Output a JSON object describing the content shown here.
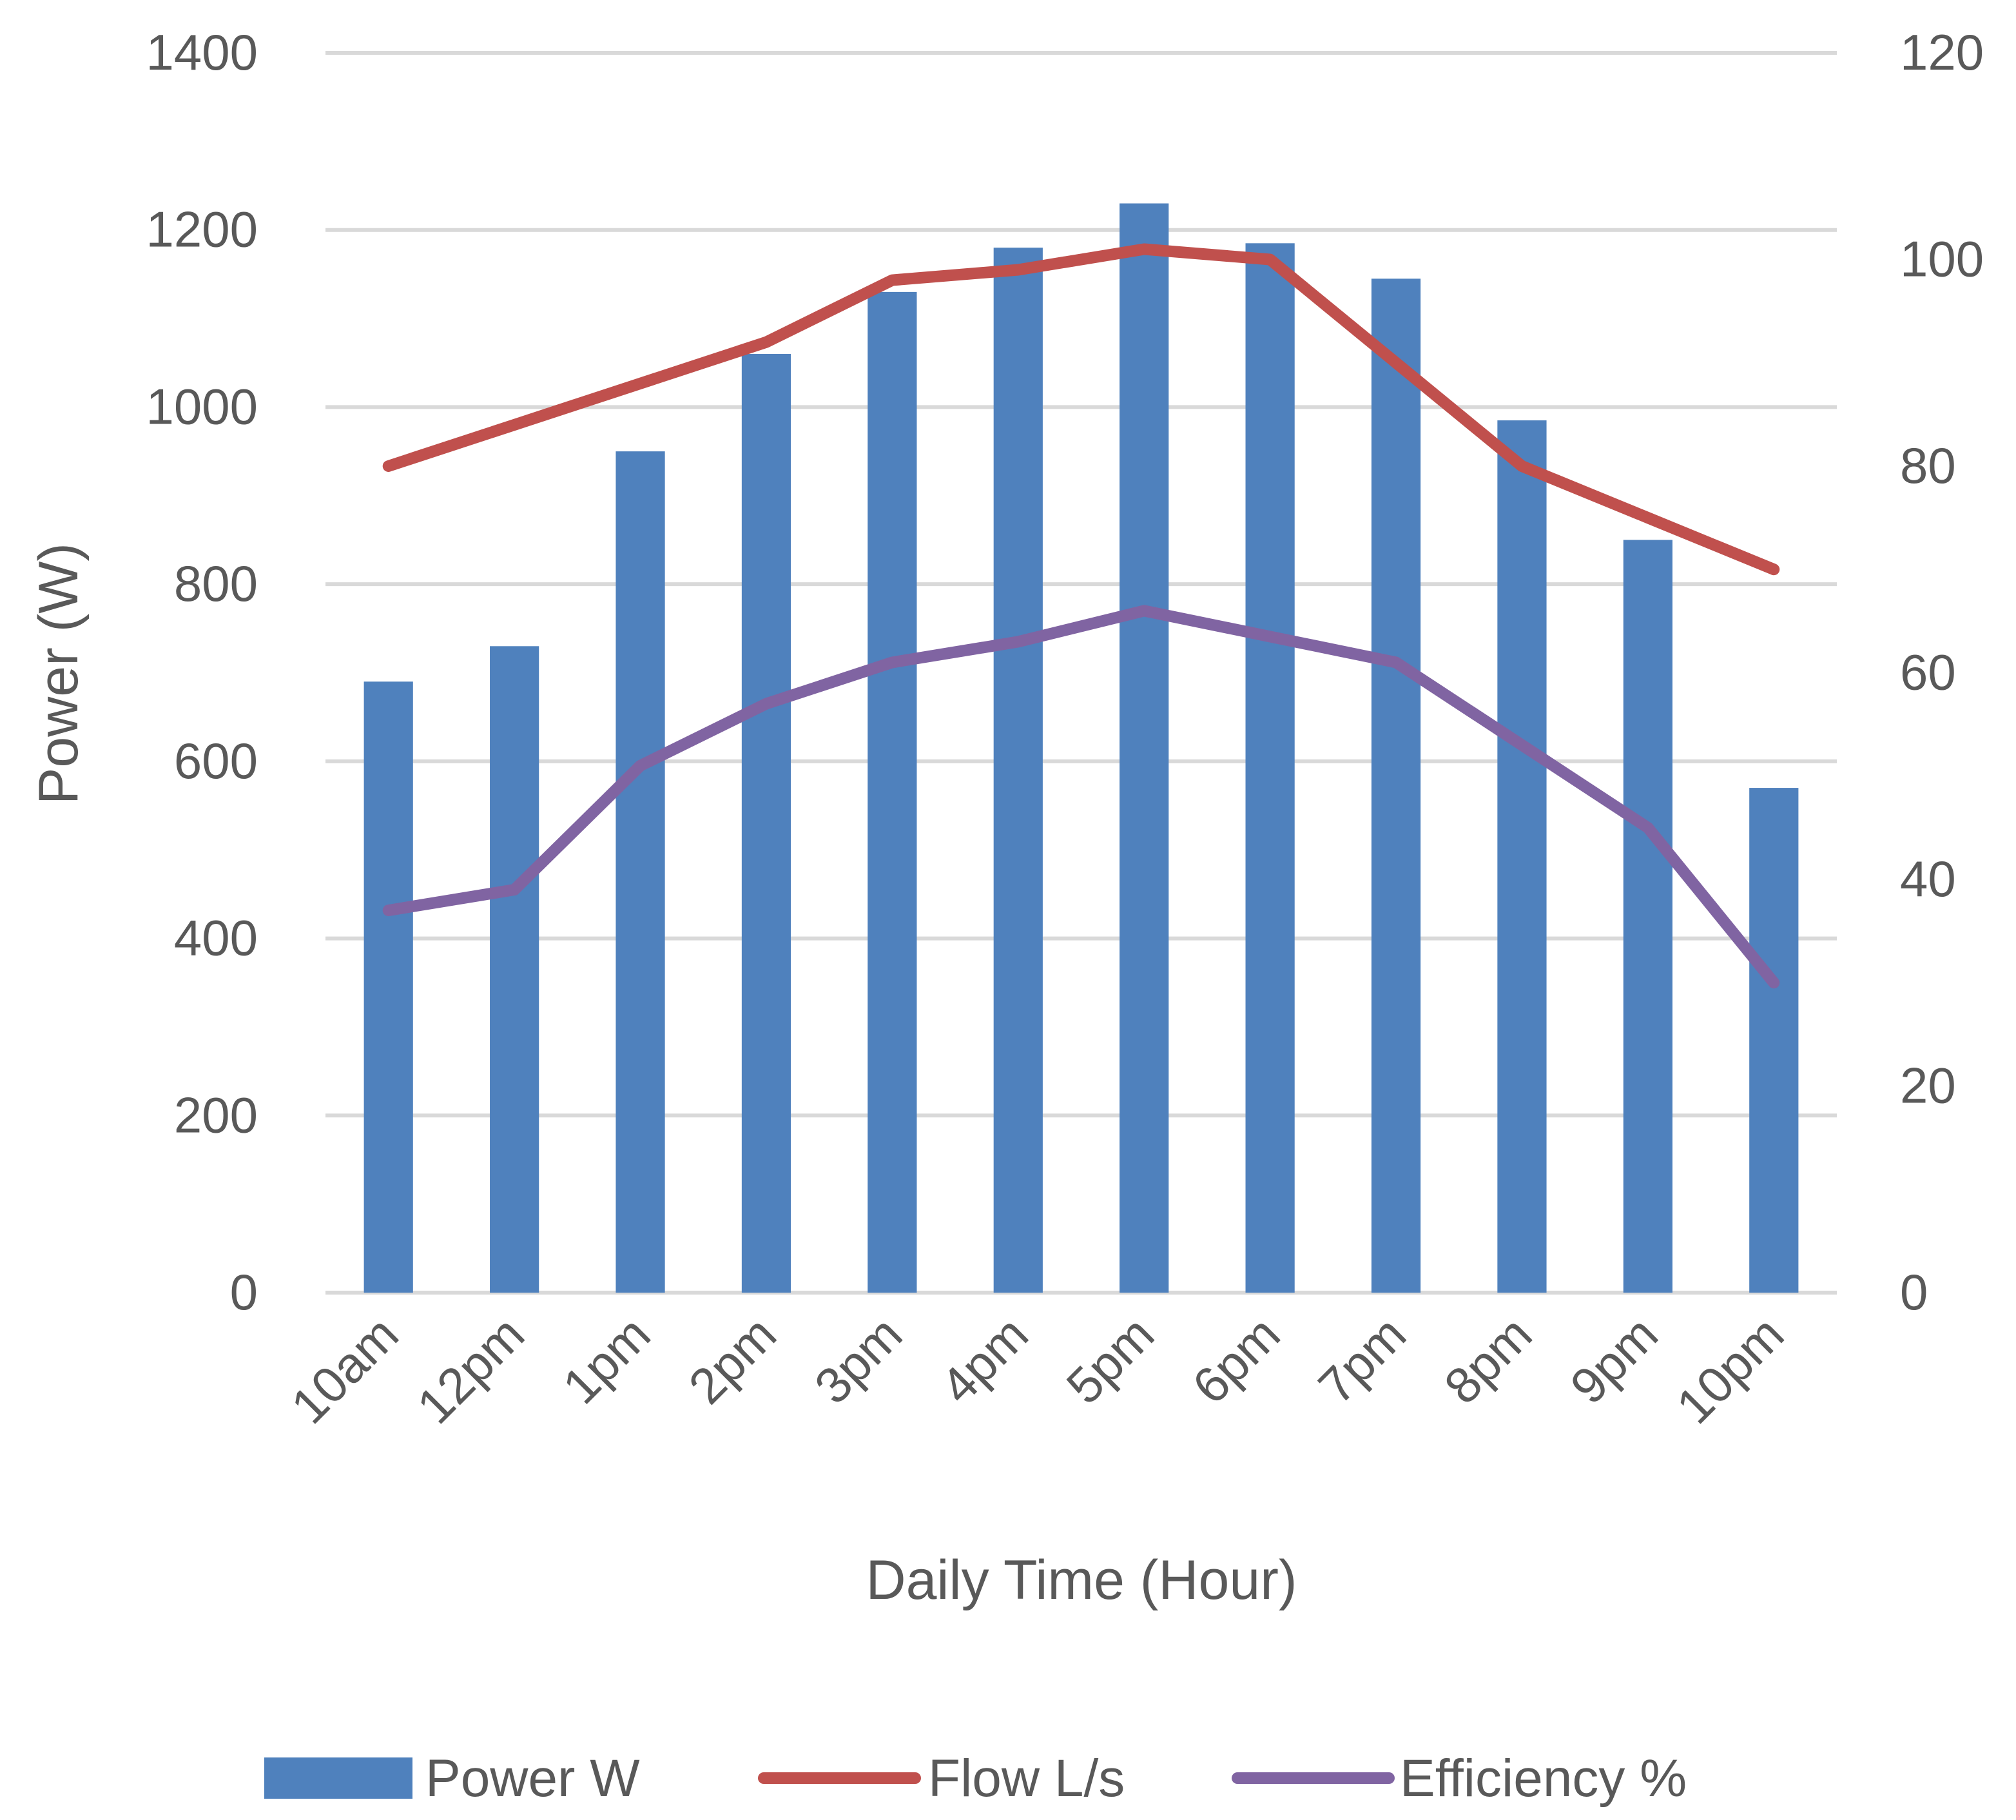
{
  "chart_data": {
    "type": "bar",
    "title": "",
    "xlabel": "Daily Time (Hour)",
    "ylabel": "Power (W)",
    "y2label": "",
    "ylim": [
      0,
      1400
    ],
    "y2lim": [
      0,
      120
    ],
    "yticks": [
      0,
      200,
      400,
      600,
      800,
      1000,
      1200,
      1400
    ],
    "y2ticks": [
      0,
      20,
      40,
      60,
      80,
      100,
      120
    ],
    "grid": true,
    "legend_position": "bottom",
    "categories": [
      "10am",
      "12pm",
      "1pm",
      "2pm",
      "3pm",
      "4pm",
      "5pm",
      "6pm",
      "7pm",
      "8pm",
      "9pm",
      "10pm"
    ],
    "series": [
      {
        "name": "Power W",
        "type": "bar",
        "axis": "left",
        "color": "#4f81bd",
        "values": [
          690,
          730,
          950,
          1060,
          1130,
          1180,
          1230,
          1185,
          1145,
          985,
          850,
          570
        ]
      },
      {
        "name": "Flow L/s",
        "type": "line",
        "axis": "right",
        "color": "#c0504d",
        "values": [
          80,
          84,
          88,
          92,
          98,
          99,
          101,
          100,
          90,
          80,
          75,
          70
        ]
      },
      {
        "name": "Efficiency %",
        "type": "line",
        "axis": "right",
        "color": "#8064a2",
        "values": [
          37,
          39,
          51,
          57,
          61,
          63,
          66,
          63.5,
          61,
          53,
          45,
          30
        ]
      }
    ]
  }
}
